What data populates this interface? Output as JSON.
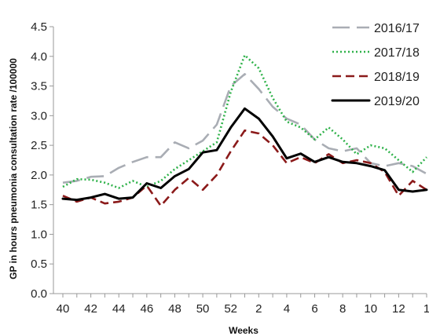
{
  "chart_data": {
    "type": "line",
    "xlabel": "Weeks",
    "ylabel": "GP in hours pneumonia consultation rate /100000",
    "ylim": [
      0,
      4.5
    ],
    "yticks": [
      "0.0",
      "0.5",
      "1.0",
      "1.5",
      "2.0",
      "2.5",
      "3.0",
      "3.5",
      "4.0",
      "4.5"
    ],
    "x": [
      "40",
      "41",
      "42",
      "43",
      "44",
      "45",
      "46",
      "47",
      "48",
      "49",
      "50",
      "51",
      "52",
      "1",
      "2",
      "3",
      "4",
      "5",
      "6",
      "7",
      "8",
      "9",
      "10",
      "11",
      "12",
      "13",
      "1"
    ],
    "xtick_labels": [
      "40",
      "42",
      "44",
      "46",
      "48",
      "50",
      "52",
      "2",
      "4",
      "6",
      "8",
      "10",
      "12",
      "1"
    ],
    "legend_position": "top-right",
    "grid": false,
    "series": [
      {
        "name": "2016/17",
        "color": "#a9adb4",
        "dash": "long-dash",
        "values": [
          1.87,
          1.9,
          1.97,
          1.98,
          2.12,
          2.22,
          2.3,
          2.3,
          2.55,
          2.45,
          2.58,
          2.85,
          3.5,
          3.7,
          3.45,
          3.15,
          2.95,
          2.85,
          2.6,
          2.45,
          2.4,
          2.45,
          2.2,
          2.15,
          2.2,
          2.15,
          2.02
        ]
      },
      {
        "name": "2017/18",
        "color": "#2fb24a",
        "dash": "dotted",
        "values": [
          1.8,
          1.93,
          1.92,
          1.87,
          1.78,
          1.9,
          1.8,
          1.9,
          2.1,
          2.25,
          2.4,
          2.55,
          3.4,
          4.02,
          3.8,
          3.3,
          2.9,
          2.8,
          2.6,
          2.8,
          2.6,
          2.35,
          2.5,
          2.45,
          2.25,
          2.05,
          2.3
        ]
      },
      {
        "name": "2018/19",
        "color": "#8b1a1a",
        "dash": "dashed",
        "values": [
          1.65,
          1.55,
          1.62,
          1.52,
          1.55,
          1.62,
          1.82,
          1.48,
          1.75,
          1.95,
          1.75,
          2.0,
          2.4,
          2.75,
          2.7,
          2.5,
          2.2,
          2.3,
          2.2,
          2.35,
          2.2,
          2.25,
          2.2,
          2.05,
          1.65,
          1.9,
          1.75
        ]
      },
      {
        "name": "2019/20",
        "color": "#000000",
        "dash": "solid",
        "values": [
          1.6,
          1.58,
          1.62,
          1.68,
          1.6,
          1.62,
          1.86,
          1.78,
          1.98,
          2.1,
          2.38,
          2.42,
          2.8,
          3.12,
          2.95,
          2.65,
          2.28,
          2.36,
          2.22,
          2.3,
          2.22,
          2.2,
          2.15,
          2.08,
          1.75,
          1.72,
          1.75
        ]
      }
    ]
  }
}
